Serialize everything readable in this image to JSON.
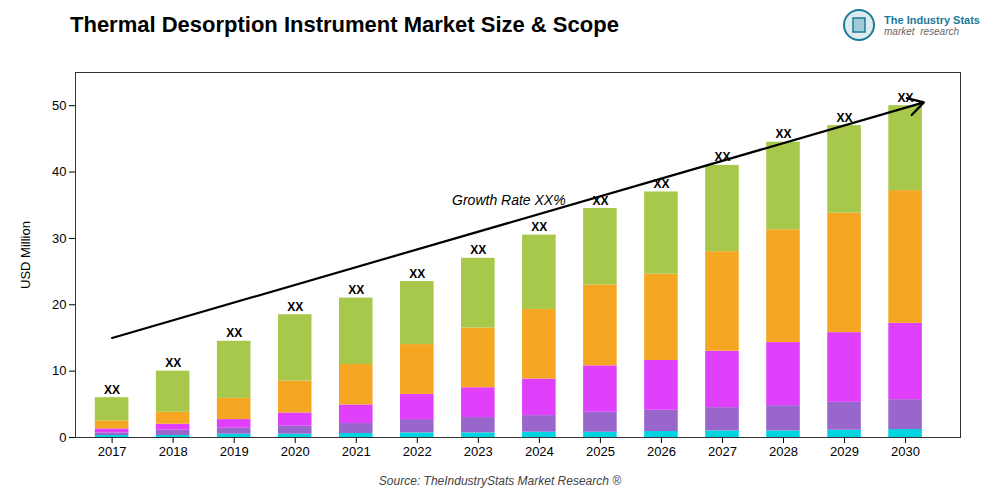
{
  "chart_data": {
    "type": "bar",
    "stacked": true,
    "title": "Thermal Desorption Instrument Market Size & Scope",
    "ylabel": "USD Million",
    "caption": "Source: TheIndustryStats Market Research ®",
    "logo": {
      "title": "The Industry Stats",
      "subtitle": "market  research"
    },
    "x": [
      2017,
      2018,
      2019,
      2020,
      2021,
      2022,
      2023,
      2024,
      2025,
      2026,
      2027,
      2028,
      2029,
      2030
    ],
    "series": [
      {
        "color": "#00d4e0",
        "values": [
          0.3,
          0.3,
          0.5,
          0.5,
          0.6,
          0.7,
          0.7,
          0.8,
          0.8,
          0.9,
          1.0,
          1.0,
          1.1,
          1.2
        ]
      },
      {
        "color": "#9966cc",
        "values": [
          0.4,
          0.8,
          0.9,
          1.2,
          1.5,
          2.0,
          2.3,
          2.5,
          3.0,
          3.2,
          3.5,
          3.8,
          4.2,
          4.5
        ]
      },
      {
        "color": "#e040fb",
        "values": [
          0.6,
          0.9,
          1.3,
          2.0,
          2.8,
          3.8,
          4.5,
          5.5,
          7.0,
          7.5,
          8.5,
          9.5,
          10.5,
          11.5
        ]
      },
      {
        "color": "#f5a623",
        "values": [
          1.2,
          1.8,
          3.2,
          4.8,
          6.1,
          7.5,
          9.0,
          10.5,
          12.2,
          13.0,
          15.0,
          17.0,
          18.0,
          20.0
        ]
      },
      {
        "color": "#a8c84b",
        "values": [
          3.5,
          6.2,
          8.6,
          10.0,
          10.0,
          9.5,
          10.5,
          11.2,
          11.5,
          12.4,
          13.0,
          13.2,
          13.2,
          12.8
        ]
      }
    ],
    "xlim": [
      2016.4,
      2030.9
    ],
    "xticks": [
      2017,
      2018,
      2019,
      2020,
      2021,
      2022,
      2023,
      2024,
      2025,
      2026,
      2027,
      2028,
      2029,
      2030
    ],
    "ylim": [
      0,
      55
    ],
    "yticks": [
      0,
      10,
      20,
      30,
      40,
      50
    ],
    "grid": false,
    "annotations": [
      {
        "text": "XX",
        "x": 2017,
        "y": 6
      },
      {
        "text": "XX",
        "x": 2018,
        "y": 10
      },
      {
        "text": "XX",
        "x": 2019,
        "y": 14.5
      },
      {
        "text": "XX",
        "x": 2020,
        "y": 18.5
      },
      {
        "text": "XX",
        "x": 2021,
        "y": 21
      },
      {
        "text": "XX",
        "x": 2022,
        "y": 23.5
      },
      {
        "text": "XX",
        "x": 2023,
        "y": 27
      },
      {
        "text": "XX",
        "x": 2024,
        "y": 30.5
      },
      {
        "text": "XX",
        "x": 2025,
        "y": 34.5
      },
      {
        "text": "XX",
        "x": 2026,
        "y": 37
      },
      {
        "text": "XX",
        "x": 2027,
        "y": 41
      },
      {
        "text": "XX",
        "x": 2028,
        "y": 44.5
      },
      {
        "text": "XX",
        "x": 2029,
        "y": 47
      },
      {
        "text": "XX",
        "x": 2030,
        "y": 50
      }
    ],
    "growth_label": {
      "text": "Growth Rate XX%",
      "x": 2023.5,
      "y": 35.0
    },
    "arrow": {
      "x1": 2017.0,
      "y1": 15.0,
      "x2": 2030.3,
      "y2": 50.5
    }
  }
}
